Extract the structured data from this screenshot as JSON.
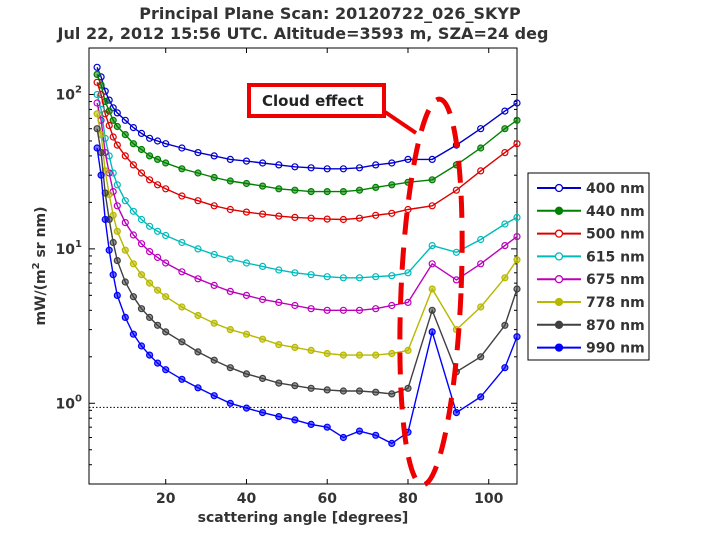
{
  "chart_data": {
    "type": "line",
    "title_line1": "Principal Plane Scan: 20120722_026_SKYP",
    "title_line2": "Jul 22, 2012 15:56 UTC. Altitude=3593 m, SZA=24 deg",
    "xlabel": "scattering angle [degrees]",
    "ylabel_prefix": "mW/(m",
    "ylabel_sup": "2",
    "ylabel_suffix": " sr nm)",
    "xlim": [
      1,
      107
    ],
    "ylim": [
      0.3,
      200
    ],
    "yscale": "log",
    "x_ticks": [
      20,
      40,
      60,
      80,
      100
    ],
    "y_ticks": [
      {
        "value": 1,
        "base": "10",
        "exp": "0"
      },
      {
        "value": 10,
        "base": "10",
        "exp": "1"
      },
      {
        "value": 100,
        "base": "10",
        "exp": "2"
      }
    ],
    "reference_line": 0.94,
    "annotation": "Cloud effect",
    "x": [
      3,
      4,
      5,
      6,
      7,
      8,
      10,
      12,
      14,
      16,
      18,
      20,
      24,
      28,
      32,
      36,
      40,
      44,
      48,
      52,
      56,
      60,
      64,
      68,
      72,
      76,
      80,
      86,
      92,
      98,
      104,
      107
    ],
    "series": [
      {
        "name": "400 nm",
        "color": "#0000cc",
        "filled": false,
        "values": [
          150,
          130,
          105,
          92,
          82,
          76,
          68,
          61,
          56,
          52,
          50,
          48,
          45,
          42,
          40,
          38,
          37,
          36,
          35,
          34,
          33.5,
          33,
          33,
          33.5,
          35,
          36,
          38,
          38,
          47,
          60,
          78,
          88
        ]
      },
      {
        "name": "440 nm",
        "color": "#008000",
        "filled": true,
        "values": [
          135,
          115,
          90,
          78,
          68,
          62,
          55,
          48,
          44,
          40,
          38,
          36,
          33,
          31,
          29,
          27.5,
          26.5,
          25.5,
          24.5,
          24,
          23.5,
          23.5,
          23.5,
          24,
          25,
          26,
          27,
          28,
          35,
          45,
          60,
          68
        ]
      },
      {
        "name": "500 nm",
        "color": "#dd0000",
        "filled": false,
        "values": [
          120,
          100,
          75,
          63,
          53,
          47,
          40,
          35,
          31,
          28,
          26,
          24.5,
          22,
          20.5,
          19,
          18,
          17.3,
          16.8,
          16.3,
          16,
          15.8,
          15.6,
          15.5,
          15.8,
          16.5,
          17,
          18,
          19,
          24,
          32,
          42,
          48
        ]
      },
      {
        "name": "615 nm",
        "color": "#00bbbb",
        "filled": false,
        "values": [
          100,
          80,
          52,
          40,
          31,
          26,
          20.5,
          17.5,
          15.5,
          14,
          13,
          12.2,
          11,
          10,
          9.2,
          8.6,
          8.1,
          7.7,
          7.3,
          7,
          6.8,
          6.6,
          6.5,
          6.5,
          6.6,
          6.7,
          7,
          10.5,
          9.5,
          11.5,
          14.5,
          16
        ]
      },
      {
        "name": "675 nm",
        "color": "#bb00bb",
        "filled": false,
        "values": [
          88,
          68,
          42,
          31,
          23.5,
          19,
          14.8,
          12.3,
          10.8,
          9.6,
          8.8,
          8.1,
          7.1,
          6.4,
          5.8,
          5.3,
          5,
          4.7,
          4.5,
          4.3,
          4.1,
          4,
          4,
          4,
          4.1,
          4.3,
          4.5,
          8,
          6.3,
          8,
          10.5,
          12
        ]
      },
      {
        "name": "778 nm",
        "color": "#b8b800",
        "filled": true,
        "values": [
          75,
          55,
          32,
          22.5,
          16.5,
          13,
          9.8,
          8,
          6.8,
          6,
          5.4,
          4.9,
          4.2,
          3.7,
          3.3,
          3,
          2.8,
          2.6,
          2.4,
          2.3,
          2.2,
          2.1,
          2.05,
          2.05,
          2.05,
          2.1,
          2.2,
          5.5,
          3,
          4.2,
          6.5,
          8.5
        ]
      },
      {
        "name": "870 nm",
        "color": "#404040",
        "filled": true,
        "values": [
          60,
          42,
          23,
          15.5,
          11,
          8.4,
          6.1,
          4.9,
          4.1,
          3.6,
          3.2,
          2.9,
          2.5,
          2.15,
          1.9,
          1.7,
          1.55,
          1.45,
          1.35,
          1.3,
          1.25,
          1.22,
          1.2,
          1.2,
          1.18,
          1.15,
          1.25,
          4,
          1.6,
          2,
          3.2,
          5.5
        ]
      },
      {
        "name": "990 nm",
        "color": "#0000ff",
        "filled": true,
        "values": [
          45,
          30,
          15.5,
          9.8,
          6.8,
          5,
          3.6,
          2.8,
          2.35,
          2.05,
          1.82,
          1.65,
          1.43,
          1.26,
          1.12,
          1,
          0.93,
          0.87,
          0.82,
          0.78,
          0.73,
          0.7,
          0.6,
          0.66,
          0.62,
          0.55,
          0.65,
          2.9,
          0.87,
          1.1,
          1.7,
          2.7
        ]
      }
    ]
  }
}
